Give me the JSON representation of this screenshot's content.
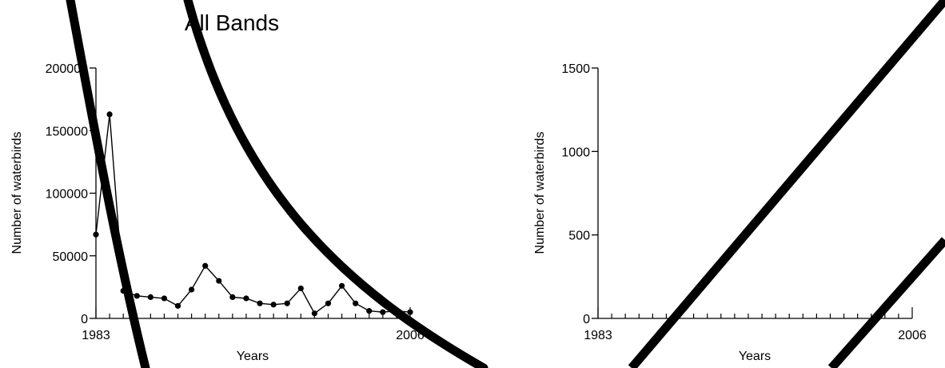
{
  "chart_data": [
    {
      "type": "line",
      "title": "All Bands",
      "xlabel": "Years",
      "ylabel": "Number of waterbirds",
      "xlim": [
        1983,
        2006
      ],
      "ylim": [
        0,
        200000
      ],
      "x_tick_labels": [
        "1983",
        "2006"
      ],
      "y_tick_labels": [
        "0",
        "50000",
        "100000",
        "150000",
        "200000"
      ],
      "y_ticks": [
        0,
        50000,
        100000,
        150000,
        200000
      ],
      "grid": false,
      "series": [
        {
          "x": [
            1983,
            1984,
            1985,
            1986,
            1987,
            1988,
            1989,
            1990,
            1991,
            1992,
            1993,
            1994,
            1995,
            1996,
            1997,
            1998,
            1999,
            2000,
            2001,
            2002,
            2003,
            2004,
            2005,
            2006
          ],
          "values": [
            67000,
            163000,
            22000,
            18000,
            17000,
            16000,
            10000,
            23000,
            42000,
            30000,
            17000,
            16000,
            12000,
            11000,
            12000,
            24000,
            4000,
            12000,
            26000,
            12000,
            6000,
            5000,
            6000,
            5000
          ],
          "color": "#000000"
        }
      ]
    },
    {
      "type": "line",
      "title": "",
      "xlabel": "Years",
      "ylabel": "Number of waterbirds",
      "xlim": [
        1983,
        2006
      ],
      "ylim": [
        0,
        1500
      ],
      "x_tick_labels": [
        "1983",
        "2006"
      ],
      "y_tick_labels": [
        "0",
        "500",
        "1000",
        "1500"
      ],
      "y_ticks": [
        0,
        500,
        1000,
        1500
      ],
      "grid": false,
      "series": []
    }
  ],
  "overlay_strokes": {
    "color": "#000000",
    "count": 4
  }
}
